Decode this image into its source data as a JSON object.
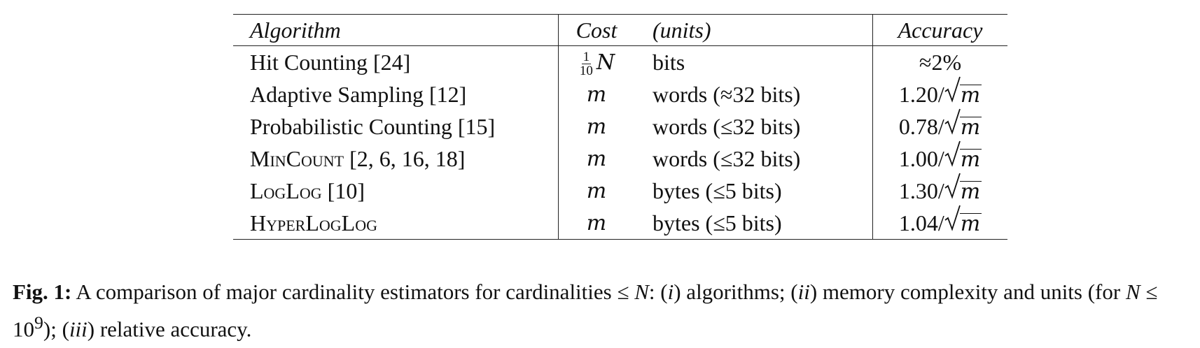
{
  "table": {
    "headers": {
      "algorithm": "Algorithm",
      "cost": "Cost",
      "units": "(units)",
      "accuracy": "Accuracy"
    },
    "rows": [
      {
        "algorithm": "Hit Counting [24]",
        "cost_num": "1",
        "cost_den": "10",
        "cost_var": "N",
        "units": "bits",
        "accuracy": "≈2%"
      },
      {
        "algorithm": "Adaptive Sampling [12]",
        "cost_var": "m",
        "units": "words (≈32 bits)",
        "accuracy_coef": "1.20/",
        "accuracy_var": "m"
      },
      {
        "algorithm": "Probabilistic Counting [15]",
        "cost_var": "m",
        "units": "words (≤32 bits)",
        "accuracy_coef": "0.78/",
        "accuracy_var": "m"
      },
      {
        "algorithm_sc": "MinCount",
        "algorithm_refs": " [2, 6, 16, 18]",
        "cost_var": "m",
        "units": "words (≤32 bits)",
        "accuracy_coef": "1.00/",
        "accuracy_var": "m"
      },
      {
        "algorithm_sc": "LogLog",
        "algorithm_refs": " [10]",
        "cost_var": "m",
        "units": "bytes (≤5 bits)",
        "accuracy_coef": "1.30/",
        "accuracy_var": "m"
      },
      {
        "algorithm_sc": "HyperLogLog",
        "algorithm_refs": "",
        "cost_var": "m",
        "units": "bytes (≤5 bits)",
        "accuracy_coef": "1.04/",
        "accuracy_var": "m"
      }
    ]
  },
  "caption": {
    "label": "Fig. 1:",
    "text_1": " A comparison of major cardinality estimators for cardinalities ≤ ",
    "var_N1": "N",
    "text_2": ": (",
    "i1": "i",
    "text_3": ") algorithms; (",
    "i2": "ii",
    "text_4": ") memory complexity and units (for ",
    "var_N2": "N",
    "text_5": " ≤ 10",
    "sup": "9",
    "text_6": "); (",
    "i3": "iii",
    "text_7": ") relative accuracy."
  }
}
